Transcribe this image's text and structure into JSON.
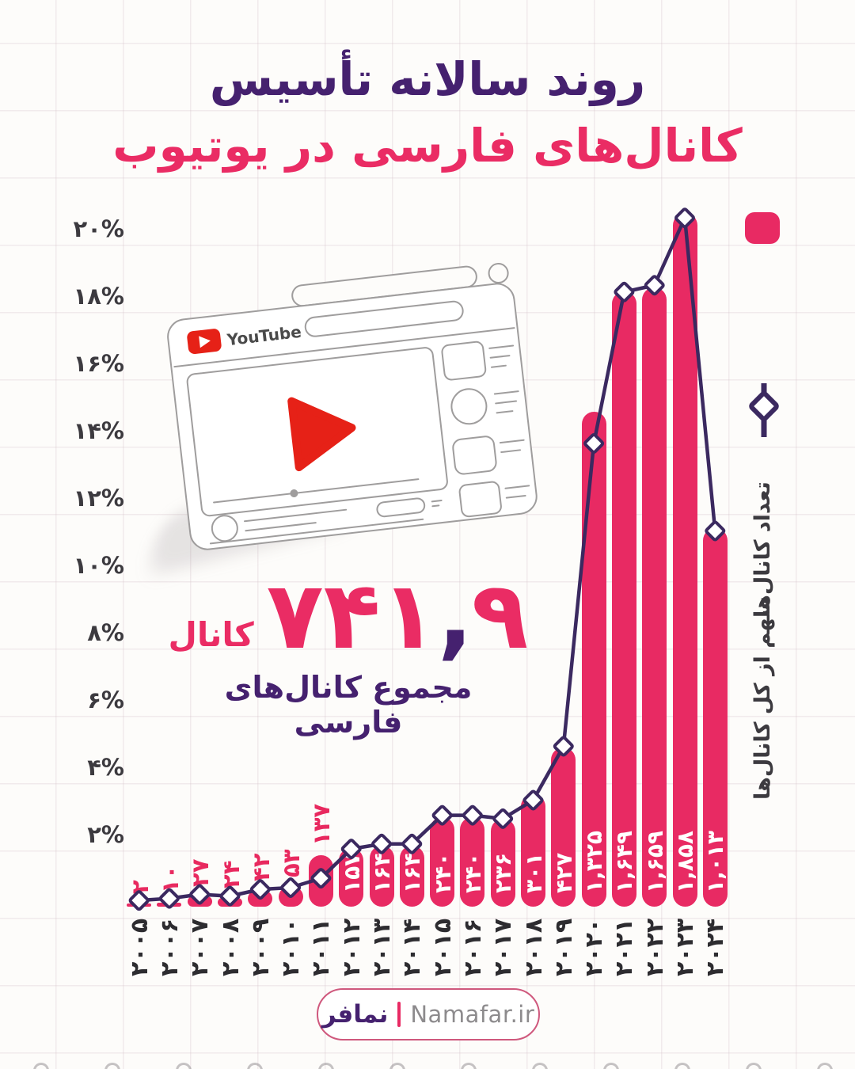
{
  "title": {
    "line1": "روند سالانه تأسیس",
    "line2": "کانال‌های فارسی در یوتیوب"
  },
  "stat": {
    "number_lead": "۹",
    "comma": ",",
    "number_rest": "۷۴۱",
    "number_full": "۹,۷۴۱",
    "value": 9741,
    "unit": "کانال",
    "subtitle": "مجموع کانال‌های فارسی"
  },
  "legend": {
    "bars_label": "تعداد کانال‌ها",
    "line_label": "سهم از کل کانال‌ها"
  },
  "illustration": {
    "brand": "YouTube"
  },
  "footer": {
    "site_fa": "نمافر",
    "site_en": "Namafar.ir"
  },
  "colors": {
    "bar_pink": "#e82a63",
    "line_purple": "#3b2960",
    "title_purple": "#45216f",
    "title_pink": "#ea2c64",
    "axis_text": "#3c3a3f",
    "youtube_red": "#e62117",
    "sketch_gray": "#9f9d9d",
    "background": "#fdfcfa"
  },
  "chart_data": {
    "type": "bar",
    "title": "روند سالانه تأسیس کانال‌های فارسی در یوتیوب",
    "categories": [
      2005,
      2006,
      2007,
      2008,
      2009,
      2010,
      2011,
      2012,
      2013,
      2014,
      2015,
      2016,
      2017,
      2018,
      2019,
      2020,
      2021,
      2022,
      2023,
      2024
    ],
    "categories_fa": [
      "۲۰۰۵",
      "۲۰۰۶",
      "۲۰۰۷",
      "۲۰۰۸",
      "۲۰۰۹",
      "۲۰۱۰",
      "۲۰۱۱",
      "۲۰۱۲",
      "۲۰۱۳",
      "۲۰۱۴",
      "۲۰۱۵",
      "۲۰۱۶",
      "۲۰۱۷",
      "۲۰۱۸",
      "۲۰۱۹",
      "۲۰۲۰",
      "۲۰۲۱",
      "۲۰۲۲",
      "۲۰۲۳",
      "۲۰۲۴"
    ],
    "series": [
      {
        "name": "تعداد کانال‌ها",
        "type": "bar",
        "values": [
          2,
          10,
          27,
          24,
          42,
          53,
          137,
          157,
          164,
          164,
          240,
          240,
          236,
          301,
          427,
          1325,
          1649,
          1659,
          1858,
          1013
        ],
        "labels_fa": [
          "۲",
          "۱۰",
          "۲۷",
          "۲۴",
          "۴۲",
          "۵۳",
          "۱۳۷",
          "۱۵۷",
          "۱۶۴",
          "۱۶۴",
          "۲۴۰",
          "۲۴۰",
          "۲۳۶",
          "۳۰۱",
          "۴۲۷",
          "۱,۳۲۵",
          "۱,۶۴۹",
          "۱,۶۵۹",
          "۱,۸۵۸",
          "۱,۰۱۳"
        ]
      },
      {
        "name": "سهم از کل کانال‌ها",
        "type": "line",
        "values_pct": [
          0.02,
          0.08,
          0.2,
          0.15,
          0.35,
          0.4,
          0.68,
          1.55,
          1.7,
          1.7,
          2.55,
          2.55,
          2.45,
          3.0,
          4.6,
          13.6,
          18.1,
          18.3,
          20.3,
          11.0
        ]
      }
    ],
    "y_ticks": [
      "۲۰%",
      "۱۸%",
      "۱۶%",
      "۱۴%",
      "۱۲%",
      "۱۰%",
      "۸%",
      "۶%",
      "۴%",
      "۲%"
    ],
    "ylim": [
      0,
      21
    ],
    "grid": true,
    "legend_position": "right",
    "total": 9741
  }
}
